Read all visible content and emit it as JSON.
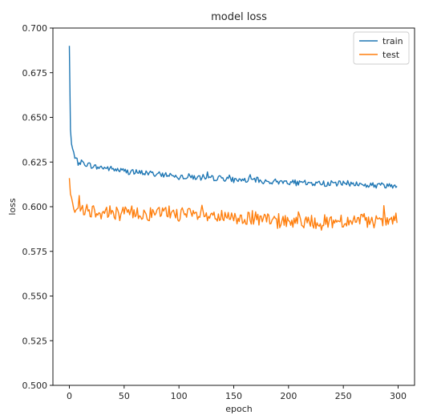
{
  "chart_data": {
    "type": "line",
    "title": "model loss",
    "xlabel": "epoch",
    "ylabel": "loss",
    "xlim": [
      -15,
      315
    ],
    "ylim": [
      0.5,
      0.7
    ],
    "xticks": [
      0,
      50,
      100,
      150,
      200,
      250,
      300
    ],
    "yticks": [
      0.5,
      0.525,
      0.55,
      0.575,
      0.6,
      0.625,
      0.65,
      0.675,
      0.7
    ],
    "ytick_labels": [
      "0.500",
      "0.525",
      "0.550",
      "0.575",
      "0.600",
      "0.625",
      "0.650",
      "0.675",
      "0.700"
    ],
    "grid": false,
    "legend_position": "top-right",
    "series": [
      {
        "name": "train",
        "color": "#1f77b4",
        "x": [
          0,
          1,
          2,
          3,
          4,
          5,
          6,
          8,
          10,
          15,
          20,
          25,
          30,
          40,
          50,
          60,
          70,
          80,
          90,
          100,
          110,
          120,
          130,
          140,
          150,
          160,
          170,
          180,
          190,
          200,
          210,
          220,
          230,
          240,
          250,
          260,
          270,
          280,
          290,
          299
        ],
        "values": [
          0.69,
          0.643,
          0.635,
          0.632,
          0.629,
          0.627,
          0.626,
          0.625,
          0.625,
          0.624,
          0.623,
          0.622,
          0.622,
          0.621,
          0.62,
          0.619,
          0.619,
          0.618,
          0.618,
          0.617,
          0.617,
          0.616,
          0.616,
          0.616,
          0.615,
          0.615,
          0.615,
          0.614,
          0.614,
          0.614,
          0.613,
          0.613,
          0.613,
          0.613,
          0.613,
          0.613,
          0.612,
          0.612,
          0.612,
          0.612
        ]
      },
      {
        "name": "test",
        "color": "#ff7f0e",
        "x": [
          0,
          1,
          2,
          3,
          4,
          5,
          6,
          8,
          10,
          15,
          20,
          25,
          30,
          40,
          50,
          60,
          70,
          80,
          90,
          100,
          110,
          120,
          130,
          140,
          150,
          160,
          170,
          180,
          190,
          200,
          210,
          220,
          230,
          240,
          250,
          260,
          270,
          280,
          290,
          299
        ],
        "values": [
          0.616,
          0.607,
          0.605,
          0.603,
          0.602,
          0.6,
          0.599,
          0.6,
          0.6,
          0.599,
          0.598,
          0.598,
          0.597,
          0.597,
          0.596,
          0.597,
          0.596,
          0.596,
          0.597,
          0.596,
          0.595,
          0.595,
          0.594,
          0.594,
          0.593,
          0.594,
          0.593,
          0.592,
          0.592,
          0.592,
          0.592,
          0.592,
          0.591,
          0.592,
          0.592,
          0.592,
          0.592,
          0.591,
          0.592,
          0.593
        ]
      }
    ]
  }
}
